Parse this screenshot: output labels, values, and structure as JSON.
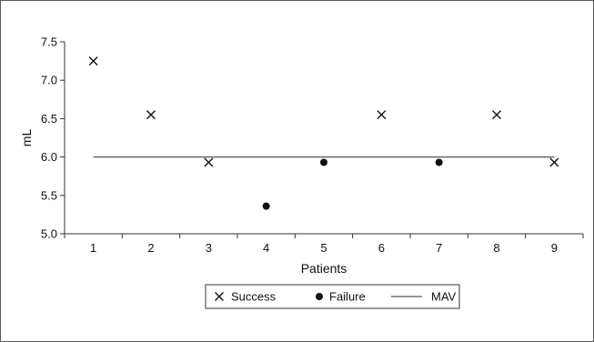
{
  "chart_data": {
    "type": "scatter",
    "title": "",
    "xlabel": "Patients",
    "ylabel": "mL",
    "xlim": [
      0.5,
      9.5
    ],
    "ylim": [
      5.0,
      7.5
    ],
    "x_ticks": [
      "1",
      "2",
      "3",
      "4",
      "5",
      "6",
      "7",
      "8",
      "9"
    ],
    "y_ticks": [
      "5.0",
      "5.5",
      "6.0",
      "6.5",
      "7.0",
      "7.5"
    ],
    "grid": false,
    "legend_position": "bottom",
    "series": [
      {
        "name": "Success",
        "marker": "cross",
        "color": "#111111",
        "points": [
          {
            "x": 1,
            "y": 7.25
          },
          {
            "x": 2,
            "y": 6.55
          },
          {
            "x": 3,
            "y": 5.93
          },
          {
            "x": 6,
            "y": 6.55
          },
          {
            "x": 8,
            "y": 6.55
          },
          {
            "x": 9,
            "y": 5.93
          }
        ]
      },
      {
        "name": "Failure",
        "marker": "filled-circle",
        "color": "#111111",
        "points": [
          {
            "x": 4,
            "y": 5.36
          },
          {
            "x": 5,
            "y": 5.93
          },
          {
            "x": 7,
            "y": 5.93
          }
        ]
      },
      {
        "name": "MAV",
        "marker": "line",
        "color": "#555555",
        "points": [
          {
            "x": 1,
            "y": 6.0
          },
          {
            "x": 9,
            "y": 6.0
          }
        ]
      }
    ]
  }
}
